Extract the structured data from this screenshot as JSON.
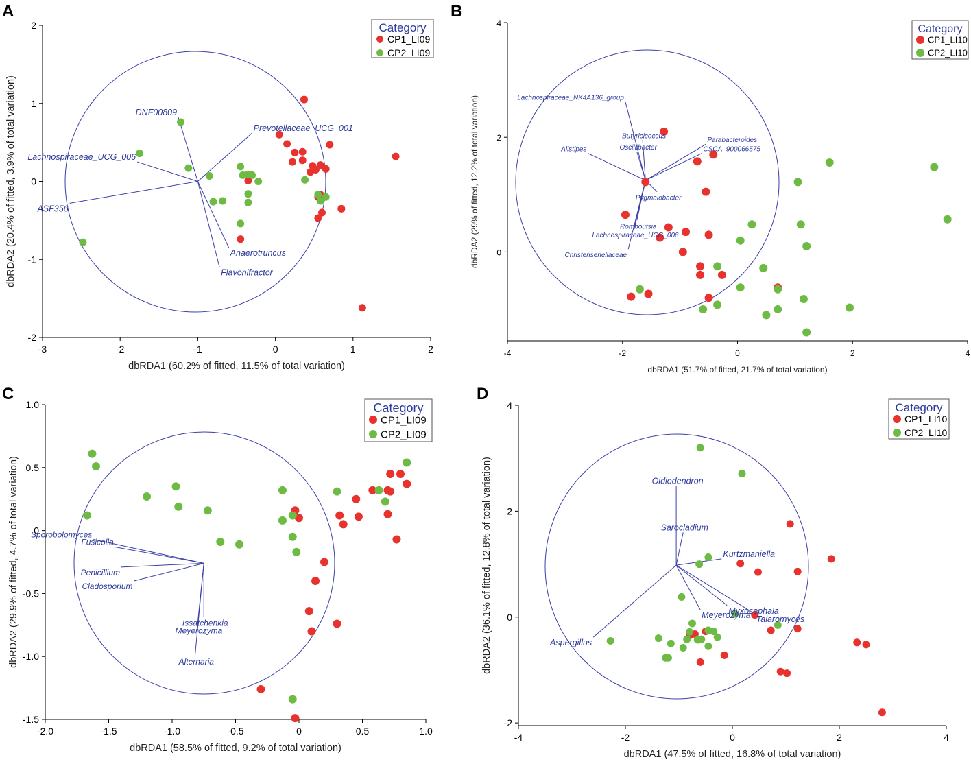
{
  "chart_data": [
    {
      "type": "scatter",
      "panel_label": "A",
      "xlabel": "dbRDA1 (60.2% of fitted, 11.5% of total variation)",
      "ylabel": "dbRDA2 (20.4% of fitted, 3.9% of total variation)",
      "xlim": [
        -3,
        2
      ],
      "ylim": [
        -2,
        2
      ],
      "xticks": [
        -3,
        -2,
        -1,
        0,
        1,
        2
      ],
      "yticks": [
        -2,
        -1,
        0,
        1,
        2
      ],
      "legend": {
        "title": "Category",
        "position": "top-right"
      },
      "circle": {
        "center": [
          -1,
          0
        ],
        "radius": 1.67
      },
      "series": [
        {
          "name": "CP1_LI09",
          "color": "#e8322d",
          "points": [
            [
              0.37,
              1.05
            ],
            [
              0.05,
              0.6
            ],
            [
              0.15,
              0.48
            ],
            [
              0.25,
              0.37
            ],
            [
              0.35,
              0.38
            ],
            [
              0.7,
              0.47
            ],
            [
              0.22,
              0.25
            ],
            [
              0.35,
              0.27
            ],
            [
              0.48,
              0.2
            ],
            [
              0.58,
              0.21
            ],
            [
              0.65,
              0.16
            ],
            [
              0.45,
              0.12
            ],
            [
              0.52,
              0.15
            ],
            [
              -0.35,
              0.01
            ],
            [
              0.58,
              -0.17
            ],
            [
              0.55,
              -0.2
            ],
            [
              0.85,
              -0.35
            ],
            [
              0.6,
              -0.4
            ],
            [
              0.55,
              -0.47
            ],
            [
              1.55,
              0.32
            ],
            [
              -0.45,
              -0.74
            ],
            [
              1.12,
              -1.62
            ]
          ]
        },
        {
          "name": "CP2_LI09",
          "color": "#6dbb45",
          "points": [
            [
              -1.22,
              0.76
            ],
            [
              -1.75,
              0.36
            ],
            [
              -1.12,
              0.17
            ],
            [
              -0.85,
              0.07
            ],
            [
              -0.45,
              0.19
            ],
            [
              -0.42,
              0.08
            ],
            [
              -0.35,
              0.09
            ],
            [
              -0.3,
              0.08
            ],
            [
              -0.22,
              0.0
            ],
            [
              -0.8,
              -0.26
            ],
            [
              -0.68,
              -0.25
            ],
            [
              -0.35,
              -0.16
            ],
            [
              -0.35,
              -0.27
            ],
            [
              -0.45,
              -0.54
            ],
            [
              0.38,
              0.02
            ],
            [
              0.55,
              -0.17
            ],
            [
              0.58,
              -0.25
            ],
            [
              0.65,
              -0.2
            ],
            [
              -2.48,
              -0.78
            ]
          ]
        }
      ],
      "vectors": [
        {
          "label": "DNF00809",
          "end": [
            -1.25,
            0.82
          ]
        },
        {
          "label": "Prevotellaceae_UCG_001",
          "end": [
            -0.3,
            0.62
          ]
        },
        {
          "label": "Lachnospiraceae_UCG_006",
          "end": [
            -1.78,
            0.25
          ]
        },
        {
          "label": "ASF356",
          "end": [
            -2.65,
            -0.28
          ]
        },
        {
          "label": "Anaerotruncus",
          "end": [
            -0.6,
            -0.85
          ]
        },
        {
          "label": "Flavonifractor",
          "end": [
            -0.72,
            -1.1
          ]
        }
      ]
    },
    {
      "type": "scatter",
      "panel_label": "B",
      "xlabel": "dbRDA1 (51.7% of fitted, 21.7% of total variation)",
      "ylabel": "dbRDA2 (29% of fitted, 12.2% of total variation)",
      "xlim": [
        -4,
        4
      ],
      "ylim": [
        -1.55,
        4
      ],
      "xticks": [
        -4,
        -2,
        0,
        2,
        4
      ],
      "yticks": [
        0,
        2,
        4
      ],
      "legend": {
        "title": "Category",
        "position": "top-right"
      },
      "circle": {
        "center": [
          -1.6,
          1.25
        ],
        "radius": 2.3
      },
      "series": [
        {
          "name": "CP1_LI10",
          "color": "#e8322d",
          "points": [
            [
              -1.28,
              2.1
            ],
            [
              -0.7,
              1.58
            ],
            [
              -0.42,
              1.7
            ],
            [
              -0.55,
              1.05
            ],
            [
              -1.6,
              1.22
            ],
            [
              -1.95,
              0.65
            ],
            [
              -1.2,
              0.43
            ],
            [
              -1.35,
              0.25
            ],
            [
              -0.9,
              0.35
            ],
            [
              -0.5,
              0.3
            ],
            [
              -0.95,
              0.0
            ],
            [
              -0.65,
              -0.25
            ],
            [
              -0.65,
              -0.4
            ],
            [
              -0.27,
              -0.4
            ],
            [
              -1.85,
              -0.78
            ],
            [
              -1.55,
              -0.73
            ],
            [
              -0.5,
              -0.8
            ],
            [
              0.7,
              -0.62
            ]
          ]
        },
        {
          "name": "CP2_LI10",
          "color": "#6dbb45",
          "points": [
            [
              3.42,
              1.48
            ],
            [
              3.65,
              0.57
            ],
            [
              1.6,
              1.56
            ],
            [
              1.05,
              1.22
            ],
            [
              1.1,
              0.48
            ],
            [
              1.2,
              0.1
            ],
            [
              0.25,
              0.48
            ],
            [
              0.05,
              0.2
            ],
            [
              0.45,
              -0.28
            ],
            [
              -0.35,
              -0.25
            ],
            [
              0.05,
              -0.62
            ],
            [
              0.7,
              -0.65
            ],
            [
              1.15,
              -0.82
            ],
            [
              1.95,
              -0.97
            ],
            [
              0.7,
              -1.0
            ],
            [
              0.5,
              -1.1
            ],
            [
              -0.35,
              -0.92
            ],
            [
              -0.6,
              -1.0
            ],
            [
              -1.7,
              -0.65
            ],
            [
              1.2,
              -1.4
            ]
          ]
        }
      ],
      "vectors": [
        {
          "label": "Lachnospiraceae_NK4A136_group",
          "end": [
            -1.95,
            2.62
          ]
        },
        {
          "label": "Butyricicoccus",
          "end": [
            -1.65,
            1.95
          ]
        },
        {
          "label": "Oscillibacter",
          "end": [
            -1.75,
            1.75
          ]
        },
        {
          "label": "Alistipes",
          "end": [
            -2.6,
            1.72
          ]
        },
        {
          "label": "Parabacteroides",
          "end": [
            -0.55,
            1.88
          ]
        },
        {
          "label": "CSCA_900066575",
          "end": [
            -0.62,
            1.72
          ]
        },
        {
          "label": "Pygmaiobacter",
          "end": [
            -1.4,
            1.05
          ]
        },
        {
          "label": "Romboutsia",
          "end": [
            -1.75,
            0.55
          ]
        },
        {
          "label": "Lachnospiraceae_UCG_006",
          "end": [
            -1.8,
            0.4
          ]
        },
        {
          "label": "Christensenellaceae",
          "end": [
            -1.9,
            0.05
          ]
        }
      ]
    },
    {
      "type": "scatter",
      "panel_label": "C",
      "xlabel": "dbRDA1 (58.5% of fitted, 9.2% of total variation)",
      "ylabel": "dbRDA2 (29.9% of fitted, 4.7% of total variation)",
      "xlim": [
        -2.0,
        1.0
      ],
      "ylim": [
        -1.5,
        1.0
      ],
      "xticks": [
        -2.0,
        -1.5,
        -1.0,
        -0.5,
        0,
        0.5,
        1.0
      ],
      "xticklabels": [
        "-2.0",
        "-1.5",
        "-1.0",
        "-0.5",
        "0",
        "0.5",
        "1.0"
      ],
      "yticks": [
        -1.5,
        -1.0,
        -0.5,
        0,
        0.5,
        1.0
      ],
      "yticklabels": [
        "-1.5",
        "-1.0",
        "-0.5",
        "0",
        "0.5",
        "1.0"
      ],
      "legend": {
        "title": "Category",
        "position": "top-right"
      },
      "circle": {
        "center": [
          -0.75,
          -0.26
        ],
        "radius": 1.03
      },
      "series": [
        {
          "name": "CP1_LI09",
          "color": "#e8322d",
          "points": [
            [
              0.58,
              0.32
            ],
            [
              0.7,
              0.32
            ],
            [
              0.72,
              0.31
            ],
            [
              0.72,
              0.45
            ],
            [
              0.8,
              0.45
            ],
            [
              0.85,
              0.37
            ],
            [
              0.45,
              0.25
            ],
            [
              0.32,
              0.12
            ],
            [
              0.35,
              0.05
            ],
            [
              0.47,
              0.11
            ],
            [
              0.7,
              0.13
            ],
            [
              0.77,
              -0.07
            ],
            [
              -0.03,
              0.16
            ],
            [
              0.0,
              0.1
            ],
            [
              0.2,
              -0.25
            ],
            [
              0.13,
              -0.4
            ],
            [
              0.08,
              -0.64
            ],
            [
              0.1,
              -0.8
            ],
            [
              0.3,
              -0.74
            ],
            [
              -0.3,
              -1.26
            ],
            [
              -0.03,
              -1.49
            ]
          ]
        },
        {
          "name": "CP2_LI09",
          "color": "#6dbb45",
          "points": [
            [
              -1.63,
              0.61
            ],
            [
              -1.6,
              0.51
            ],
            [
              -1.67,
              0.12
            ],
            [
              -1.2,
              0.27
            ],
            [
              -0.97,
              0.35
            ],
            [
              -0.95,
              0.19
            ],
            [
              -0.72,
              0.16
            ],
            [
              -0.62,
              -0.09
            ],
            [
              -0.47,
              -0.11
            ],
            [
              -0.13,
              0.32
            ],
            [
              -0.05,
              0.12
            ],
            [
              -0.05,
              -0.05
            ],
            [
              -0.02,
              -0.17
            ],
            [
              -0.13,
              0.08
            ],
            [
              0.3,
              0.31
            ],
            [
              0.63,
              0.32
            ],
            [
              0.68,
              0.23
            ],
            [
              0.85,
              0.54
            ],
            [
              -0.05,
              -1.34
            ]
          ]
        }
      ],
      "vectors": [
        {
          "label": "Sporobolomyces",
          "end": [
            -1.62,
            -0.07
          ]
        },
        {
          "label": "Fusicolla",
          "end": [
            -1.45,
            -0.13
          ]
        },
        {
          "label": "Penicillium",
          "end": [
            -1.4,
            -0.29
          ]
        },
        {
          "label": "Cladosporium",
          "end": [
            -1.3,
            -0.4
          ]
        },
        {
          "label": "Issatchenkia",
          "end": [
            -0.75,
            -0.69
          ]
        },
        {
          "label": "Meyerozyma",
          "end": [
            -0.8,
            -0.75
          ]
        },
        {
          "label": "Alternaria",
          "end": [
            -0.82,
            -1.0
          ]
        }
      ]
    },
    {
      "type": "scatter",
      "panel_label": "D",
      "xlabel": "dbRDA1 (47.5% of fitted, 16.8% of total variation)",
      "ylabel": "dbRDA2 (36.1% of fitted, 12.8% of total variation)",
      "xlim": [
        -4,
        4
      ],
      "ylim": [
        -2.05,
        4
      ],
      "xticks": [
        -4,
        -2,
        0,
        2,
        4
      ],
      "yticks": [
        -2,
        0,
        2,
        4
      ],
      "legend": {
        "title": "Category",
        "position": "top-right"
      },
      "circle": {
        "center": [
          -1.05,
          0.98
        ],
        "radius": 2.45
      },
      "series": [
        {
          "name": "CP1_LI10",
          "color": "#e8322d",
          "points": [
            [
              1.08,
              1.76
            ],
            [
              1.85,
              1.1
            ],
            [
              1.22,
              0.86
            ],
            [
              0.15,
              1.01
            ],
            [
              0.48,
              0.85
            ],
            [
              0.42,
              0.04
            ],
            [
              0.72,
              -0.25
            ],
            [
              1.22,
              -0.22
            ],
            [
              2.33,
              -0.48
            ],
            [
              2.5,
              -0.52
            ],
            [
              0.9,
              -1.03
            ],
            [
              1.02,
              -1.06
            ],
            [
              2.8,
              -1.8
            ],
            [
              -0.5,
              -0.27
            ],
            [
              -0.7,
              -0.32
            ],
            [
              -0.8,
              -0.35
            ],
            [
              -0.15,
              -0.72
            ],
            [
              -0.6,
              -0.85
            ]
          ]
        },
        {
          "name": "CP2_LI10",
          "color": "#6dbb45",
          "points": [
            [
              -0.6,
              3.2
            ],
            [
              0.18,
              2.71
            ],
            [
              -0.45,
              1.13
            ],
            [
              -0.62,
              1.0
            ],
            [
              -0.95,
              0.38
            ],
            [
              0.05,
              0.06
            ],
            [
              0.85,
              -0.15
            ],
            [
              -0.75,
              -0.12
            ],
            [
              -0.8,
              -0.28
            ],
            [
              -0.85,
              -0.42
            ],
            [
              -0.65,
              -0.43
            ],
            [
              -0.58,
              -0.42
            ],
            [
              -0.45,
              -0.25
            ],
            [
              -0.35,
              -0.27
            ],
            [
              -0.45,
              -0.55
            ],
            [
              -0.28,
              -0.38
            ],
            [
              -0.92,
              -0.58
            ],
            [
              -1.15,
              -0.5
            ],
            [
              -1.38,
              -0.4
            ],
            [
              -1.25,
              -0.77
            ],
            [
              -1.2,
              -0.77
            ],
            [
              -2.28,
              -0.45
            ]
          ]
        }
      ],
      "vectors": [
        {
          "label": "Oidiodendron",
          "end": [
            -1.05,
            2.48
          ]
        },
        {
          "label": "Sarocladium",
          "end": [
            -0.92,
            1.6
          ]
        },
        {
          "label": "Kurtzmaniella",
          "end": [
            -0.2,
            1.1
          ]
        },
        {
          "label": "Myxocephala",
          "end": [
            -0.1,
            0.22
          ]
        },
        {
          "label": "Meyerozyma",
          "end": [
            -0.6,
            0.14
          ]
        },
        {
          "label": "Talaromyces",
          "end": [
            0.42,
            0.06
          ]
        },
        {
          "label": "Aspergillus",
          "end": [
            -2.6,
            -0.38
          ]
        }
      ]
    }
  ]
}
